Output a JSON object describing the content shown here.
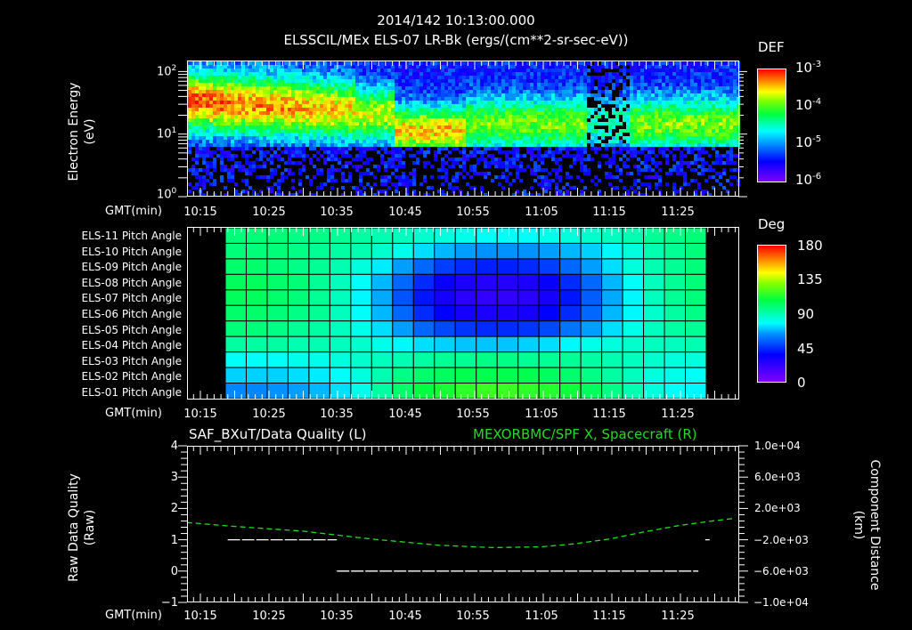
{
  "header": {
    "timestamp": "2014/142 10:13:00.000",
    "subtitle": "ELSSCIL/MEx ELS-07 LR-Bk  (ergs/(cm**2-sr-sec-eV))"
  },
  "colors": {
    "background": "#000000",
    "axis": "#ffffff",
    "right_series": "#22dd22",
    "left_series": "#ffffff"
  },
  "xaxis": {
    "label": "GMT(min)",
    "ticks": [
      "10:15",
      "10:25",
      "10:35",
      "10:45",
      "10:55",
      "11:05",
      "11:15",
      "11:25"
    ]
  },
  "panel1": {
    "ylabel": "Electron Energy",
    "yunit": "(eV)",
    "yticks": [
      {
        "base": "10",
        "exp": "2"
      },
      {
        "base": "10",
        "exp": "1"
      },
      {
        "base": "10",
        "exp": "0"
      }
    ],
    "colorbar": {
      "title": "DEF",
      "ticks": [
        {
          "base": "10",
          "exp": "-3"
        },
        {
          "base": "10",
          "exp": "-4"
        },
        {
          "base": "10",
          "exp": "-5"
        },
        {
          "base": "10",
          "exp": "-6"
        }
      ]
    }
  },
  "panel2": {
    "rows": [
      "ELS-11 Pitch Angle",
      "ELS-10 Pitch Angle",
      "ELS-09 Pitch Angle",
      "ELS-08 Pitch Angle",
      "ELS-07 Pitch Angle",
      "ELS-06 Pitch Angle",
      "ELS-05 Pitch Angle",
      "ELS-04 Pitch Angle",
      "ELS-03 Pitch Angle",
      "ELS-02 Pitch Angle",
      "ELS-01 Pitch Angle"
    ],
    "colorbar": {
      "title": "Deg",
      "ticks": [
        "180",
        "135",
        "90",
        "45",
        "0"
      ]
    }
  },
  "panel3": {
    "left_title": "SAF_BXuT/Data Quality (L)",
    "right_title": "MEXORBMC/SPF X, Spacecraft (R)",
    "ylabel_left": "Raw Data Quality",
    "yunit_left": "(Raw)",
    "yticks_left": [
      "4",
      "3",
      "2",
      "1",
      "0",
      "−1"
    ],
    "ylabel_right": "Component Distance",
    "yunit_right": "(km)",
    "yticks_right": [
      "1.0e+04",
      "6.0e+03",
      "2.0e+03",
      "−2.0e+03",
      "−6.0e+03",
      "−1.0e+04"
    ]
  },
  "chart_data": [
    {
      "type": "heatmap",
      "title": "ELSSCIL/MEx ELS-07 LR-Bk (ergs/(cm**2-sr-sec-eV))",
      "xlabel": "GMT(min)",
      "ylabel": "Electron Energy (eV)",
      "yscale": "log",
      "ylim": [
        1,
        150
      ],
      "x_ticks": [
        "10:15",
        "10:25",
        "10:35",
        "10:45",
        "10:55",
        "11:05",
        "11:15",
        "11:25"
      ],
      "colorbar": {
        "label": "DEF",
        "scale": "log",
        "range": [
          1e-06,
          0.001
        ]
      },
      "features": [
        {
          "time": "10:13-10:20",
          "energy_eV": "20-50",
          "level": "~2e-4 (peak, yellow-green)"
        },
        {
          "time": "10:20-10:40",
          "energy_eV": "10-40",
          "level": "~1e-4 (green band)"
        },
        {
          "time": "10:40-10:50",
          "energy_eV": "6-20",
          "level": "~1e-4 (green blob)"
        },
        {
          "time": "10:50-11:10",
          "energy_eV": "6-30",
          "level": "~2e-5 (cyan)"
        },
        {
          "time": "11:10-11:17",
          "energy_eV": "all",
          "level": "<1e-5 (dropout)"
        },
        {
          "time": "11:17-11:32",
          "energy_eV": "6-30",
          "level": "~2e-5 (cyan)"
        }
      ]
    },
    {
      "type": "heatmap",
      "title": "ELS Pitch Angles",
      "xlabel": "GMT(min)",
      "categories": [
        "ELS-11",
        "ELS-10",
        "ELS-09",
        "ELS-08",
        "ELS-07",
        "ELS-06",
        "ELS-05",
        "ELS-04",
        "ELS-03",
        "ELS-02",
        "ELS-01"
      ],
      "x_ticks": [
        "10:15",
        "10:25",
        "10:35",
        "10:45",
        "10:55",
        "11:05",
        "11:15",
        "11:25"
      ],
      "colorbar": {
        "label": "Deg",
        "range": [
          0,
          180
        ],
        "ticks": [
          0,
          45,
          90,
          135,
          180
        ]
      },
      "x_start": "10:19",
      "x_end": "11:29",
      "columns": 23,
      "values_deg": [
        [
          100,
          100,
          100,
          98,
          98,
          96,
          94,
          92,
          90,
          88,
          86,
          84,
          82,
          82,
          82,
          84,
          86,
          88,
          90,
          92,
          96,
          98,
          100
        ],
        [
          100,
          100,
          100,
          98,
          96,
          94,
          92,
          88,
          84,
          76,
          70,
          66,
          64,
          64,
          64,
          66,
          70,
          74,
          80,
          86,
          92,
          96,
          100
        ],
        [
          102,
          102,
          100,
          98,
          96,
          92,
          86,
          78,
          66,
          56,
          48,
          44,
          42,
          42,
          44,
          48,
          56,
          66,
          76,
          86,
          92,
          96,
          100
        ],
        [
          104,
          104,
          102,
          100,
          96,
          90,
          82,
          70,
          56,
          44,
          34,
          28,
          26,
          26,
          28,
          34,
          44,
          56,
          70,
          82,
          90,
          96,
          100
        ],
        [
          104,
          104,
          102,
          100,
          96,
          90,
          80,
          68,
          52,
          40,
          30,
          24,
          22,
          22,
          24,
          30,
          40,
          54,
          68,
          80,
          90,
          96,
          100
        ],
        [
          102,
          102,
          100,
          98,
          96,
          90,
          82,
          70,
          56,
          44,
          36,
          30,
          28,
          28,
          30,
          36,
          44,
          56,
          70,
          80,
          88,
          94,
          98
        ],
        [
          100,
          100,
          98,
          96,
          94,
          90,
          84,
          76,
          66,
          56,
          50,
          46,
          44,
          44,
          46,
          50,
          58,
          66,
          76,
          84,
          90,
          94,
          96
        ],
        [
          94,
          94,
          94,
          92,
          92,
          90,
          88,
          84,
          80,
          76,
          74,
          72,
          72,
          72,
          74,
          76,
          80,
          84,
          86,
          88,
          90,
          90,
          92
        ],
        [
          82,
          82,
          82,
          84,
          84,
          86,
          88,
          90,
          92,
          94,
          96,
          96,
          98,
          98,
          96,
          96,
          96,
          94,
          92,
          90,
          88,
          86,
          86
        ],
        [
          74,
          74,
          74,
          76,
          78,
          82,
          86,
          92,
          98,
          102,
          104,
          106,
          106,
          106,
          106,
          104,
          102,
          98,
          94,
          90,
          86,
          84,
          82
        ],
        [
          62,
          62,
          64,
          66,
          70,
          76,
          84,
          94,
          102,
          108,
          112,
          116,
          118,
          118,
          116,
          114,
          110,
          104,
          98,
          92,
          86,
          82,
          80
        ]
      ]
    },
    {
      "type": "line",
      "title_left": "SAF_BXuT/Data Quality (L)",
      "title_right": "MEXORBMC/SPF X, Spacecraft (R)",
      "xlabel": "GMT(min)",
      "ylabel_left": "Raw Data Quality (Raw)",
      "ylabel_right": "Component Distance (km)",
      "ylim_left": [
        -1,
        4
      ],
      "ylim_right": [
        -10000,
        10000
      ],
      "x_ticks": [
        "10:15",
        "10:25",
        "10:35",
        "10:45",
        "10:55",
        "11:05",
        "11:15",
        "11:25"
      ],
      "series": [
        {
          "name": "Data Quality",
          "axis": "left",
          "color": "#ffffff",
          "style": "dashed",
          "points": [
            [
              "10:19",
              1
            ],
            [
              "10:35",
              1
            ],
            [
              "10:35",
              0
            ],
            [
              "11:28",
              0
            ],
            [
              "11:29",
              1
            ]
          ]
        },
        {
          "name": "SPF X Spacecraft",
          "axis": "right",
          "color": "#22dd22",
          "style": "dashed",
          "points": [
            [
              "10:13",
              200
            ],
            [
              "10:20",
              -300
            ],
            [
              "10:30",
              -900
            ],
            [
              "10:40",
              -1900
            ],
            [
              "10:50",
              -2700
            ],
            [
              "10:58",
              -3000
            ],
            [
              "11:05",
              -2900
            ],
            [
              "11:10",
              -2500
            ],
            [
              "11:15",
              -1900
            ],
            [
              "11:20",
              -1000
            ],
            [
              "11:25",
              -200
            ],
            [
              "11:30",
              400
            ],
            [
              "11:33",
              700
            ]
          ]
        }
      ]
    }
  ]
}
